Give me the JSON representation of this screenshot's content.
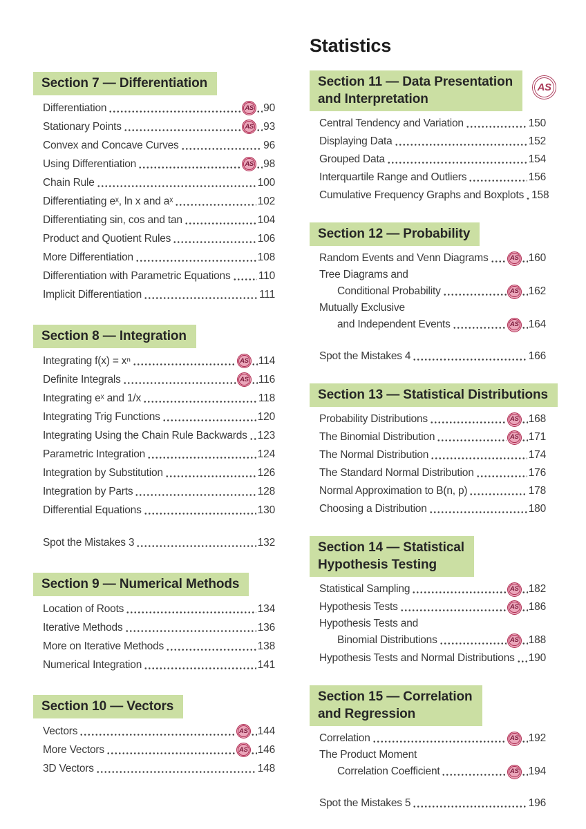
{
  "page": {
    "statistics_title": "Statistics"
  },
  "badge": {
    "label": "AS"
  },
  "theme": {
    "banner_bg": "#cbdfa3",
    "badge_fill": "#eaa6ba",
    "badge_ring": "#b03156",
    "badge_text": "#7e1d3e",
    "text": "#3a3a3a"
  },
  "columns": {
    "left": {
      "sections": [
        {
          "title_lines": [
            "Section 7 — Differentiation"
          ],
          "as_badge": false,
          "entries": [
            {
              "label": "Differentiation",
              "as": true,
              "page": "90"
            },
            {
              "label": "Stationary Points",
              "as": true,
              "page": "93"
            },
            {
              "label": "Convex and Concave Curves",
              "page": "96"
            },
            {
              "label": "Using Differentiation",
              "as": true,
              "page": "98"
            },
            {
              "label": "Chain Rule",
              "page": "100"
            },
            {
              "label": "Differentiating eˣ, ln x and aˣ",
              "page": "102"
            },
            {
              "label": "Differentiating sin, cos and tan",
              "page": "104"
            },
            {
              "label": "Product and Quotient Rules",
              "page": "106"
            },
            {
              "label": "More Differentiation",
              "page": "108"
            },
            {
              "label": "Differentiation with Parametric Equations",
              "page": "110"
            },
            {
              "label": "Implicit Differentiation",
              "page": "111"
            }
          ]
        },
        {
          "title_lines": [
            "Section 8 — Integration"
          ],
          "as_badge": false,
          "entries": [
            {
              "label": "Integrating f(x) = xⁿ",
              "as": true,
              "page": "114"
            },
            {
              "label": "Definite Integrals",
              "as": true,
              "page": "116"
            },
            {
              "label": "Integrating eˣ and 1/x",
              "page": "118"
            },
            {
              "label": "Integrating Trig Functions",
              "page": "120"
            },
            {
              "label": "Integrating Using the Chain Rule Backwards",
              "page": "123"
            },
            {
              "label": "Parametric Integration",
              "page": "124"
            },
            {
              "label": "Integration by Substitution",
              "page": "126"
            },
            {
              "label": "Integration by Parts",
              "page": "128"
            },
            {
              "label": "Differential Equations",
              "page": "130"
            },
            {
              "label": "Spot the Mistakes 3",
              "page": "132",
              "gap_before": true
            }
          ]
        },
        {
          "title_lines": [
            "Section 9 — Numerical Methods"
          ],
          "as_badge": false,
          "entries": [
            {
              "label": "Location of Roots",
              "page": "134"
            },
            {
              "label": "Iterative Methods",
              "page": "136"
            },
            {
              "label": "More on Iterative Methods",
              "page": "138"
            },
            {
              "label": "Numerical Integration",
              "page": "141"
            }
          ]
        },
        {
          "title_lines": [
            "Section 10 — Vectors"
          ],
          "as_badge": false,
          "entries": [
            {
              "label": "Vectors",
              "as": true,
              "page": "144"
            },
            {
              "label": "More Vectors",
              "as": true,
              "page": "146"
            },
            {
              "label": "3D Vectors",
              "page": "148"
            }
          ]
        }
      ]
    },
    "right": {
      "sections": [
        {
          "title_lines": [
            "Section 11 — Data Presentation",
            "and Interpretation"
          ],
          "as_badge": true,
          "entries": [
            {
              "label": "Central Tendency and Variation",
              "page": "150"
            },
            {
              "label": "Displaying Data",
              "page": "152"
            },
            {
              "label": "Grouped Data",
              "page": "154"
            },
            {
              "label": "Interquartile Range and Outliers",
              "page": "156"
            },
            {
              "label": "Cumulative Frequency Graphs and Boxplots",
              "page": "158"
            }
          ]
        },
        {
          "title_lines": [
            "Section 12 — Probability"
          ],
          "as_badge": false,
          "entries": [
            {
              "label": "Random Events and Venn Diagrams",
              "as": true,
              "page": "160"
            },
            {
              "pre": "Tree Diagrams and",
              "label": "Conditional Probability",
              "as": true,
              "page": "162"
            },
            {
              "pre": "Mutually Exclusive",
              "label": "and Independent Events",
              "as": true,
              "page": "164"
            },
            {
              "label": "Spot the Mistakes 4",
              "page": "166",
              "gap_before": true
            }
          ]
        },
        {
          "title_lines": [
            "Section 13 — Statistical Distributions"
          ],
          "as_badge": false,
          "entries": [
            {
              "label": "Probability Distributions",
              "as": true,
              "page": "168"
            },
            {
              "label": "The Binomial Distribution",
              "as": true,
              "page": "171"
            },
            {
              "label": "The Normal Distribution",
              "page": "174"
            },
            {
              "label": "The Standard Normal Distribution",
              "page": "176"
            },
            {
              "label": "Normal Approximation to B(n, p)",
              "page": "178"
            },
            {
              "label": "Choosing a Distribution",
              "page": "180"
            }
          ]
        },
        {
          "title_lines": [
            "Section 14 — Statistical",
            "Hypothesis Testing"
          ],
          "as_badge": false,
          "entries": [
            {
              "label": "Statistical Sampling",
              "as": true,
              "page": "182"
            },
            {
              "label": "Hypothesis Tests",
              "as": true,
              "page": "186"
            },
            {
              "pre": "Hypothesis Tests and",
              "label": "Binomial Distributions",
              "as": true,
              "page": "188"
            },
            {
              "label": "Hypothesis Tests and Normal Distributions",
              "page": "190"
            }
          ]
        },
        {
          "title_lines": [
            "Section 15 — Correlation",
            "and Regression"
          ],
          "as_badge": false,
          "entries": [
            {
              "label": "Correlation",
              "as": true,
              "page": "192"
            },
            {
              "pre": "The Product Moment",
              "label": "Correlation Coefficient",
              "as": true,
              "page": "194"
            },
            {
              "label": "Spot the Mistakes 5",
              "page": "196",
              "gap_before": true
            }
          ]
        }
      ]
    }
  }
}
